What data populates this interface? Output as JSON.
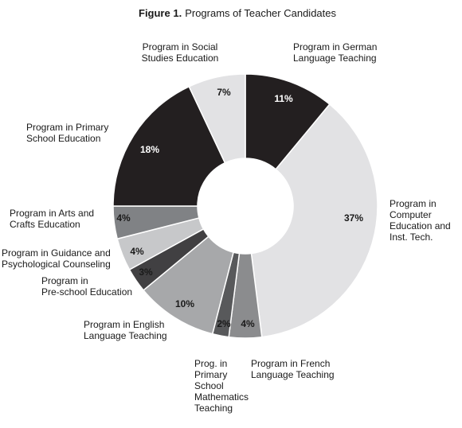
{
  "chart_data": {
    "type": "pie",
    "title_prefix": "Figure 1.",
    "title": "Programs of Teacher Candidates",
    "style": "donut",
    "slices": [
      {
        "label": [
          "Program in German",
          "Language Teaching"
        ],
        "value": 11,
        "display": "11%",
        "color": "#231f20",
        "text_color": "#ffffff"
      },
      {
        "label": [
          "Program in",
          "Computer",
          "Education and",
          "Inst. Tech."
        ],
        "value": 37,
        "display": "37%",
        "color": "#e2e2e4",
        "text_color": "#1a1a1a"
      },
      {
        "label": [
          "Program in French",
          "Language Teaching"
        ],
        "value": 4,
        "display": "4%",
        "color": "#8b8c8e",
        "text_color": "#1a1a1a"
      },
      {
        "label": [
          "Prog. in",
          "Primary",
          "School",
          "Mathematics",
          "Teaching"
        ],
        "value": 2,
        "display": "2%",
        "color": "#58595b",
        "text_color": "#1a1a1a"
      },
      {
        "label": [
          "Program in English",
          "Language Teaching"
        ],
        "value": 10,
        "display": "10%",
        "color": "#a7a8aa",
        "text_color": "#1a1a1a"
      },
      {
        "label": [
          "Program in",
          "Pre-school Education"
        ],
        "value": 3,
        "display": "3%",
        "color": "#414042",
        "text_color": "#1a1a1a"
      },
      {
        "label": [
          "Program in Guidance and",
          "Psychological Counseling"
        ],
        "value": 4,
        "display": "4%",
        "color": "#c7c8ca",
        "text_color": "#1a1a1a"
      },
      {
        "label": [
          "Program in Arts and",
          "Crafts Education"
        ],
        "value": 4,
        "display": "4%",
        "color": "#808285",
        "text_color": "#1a1a1a"
      },
      {
        "label": [
          "Program in Primary",
          "School Education"
        ],
        "value": 18,
        "display": "18%",
        "color": "#231f20",
        "text_color": "#ffffff"
      },
      {
        "label": [
          "Program in Social",
          "Studies Education"
        ],
        "value": 7,
        "display": "7%",
        "color": "#e2e2e4",
        "text_color": "#1a1a1a"
      }
    ]
  }
}
